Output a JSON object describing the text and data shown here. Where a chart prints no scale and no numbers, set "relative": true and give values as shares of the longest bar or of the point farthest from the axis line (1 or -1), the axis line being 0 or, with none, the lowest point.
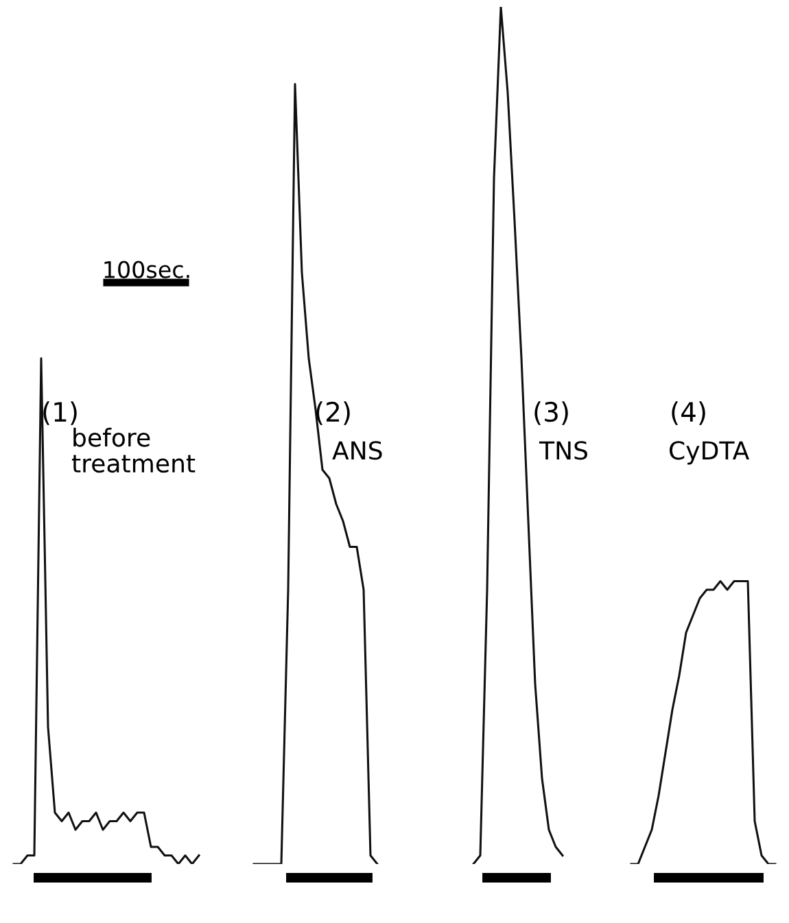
{
  "chart_data": {
    "type": "line",
    "relative": true,
    "legend": false,
    "grid": false,
    "categories": [
      null,
      null,
      null,
      null,
      null,
      null,
      null,
      null,
      null,
      null,
      null,
      null,
      null,
      null,
      null,
      null,
      null,
      null,
      null,
      null,
      null,
      null,
      null,
      null,
      null,
      null,
      null,
      null,
      null,
      null,
      null,
      null,
      null,
      null,
      null,
      null,
      null,
      null,
      null,
      null,
      null,
      null,
      null,
      null,
      null,
      null,
      null,
      null,
      null,
      null,
      null,
      null,
      null,
      null,
      null,
      null,
      null,
      null,
      null,
      null,
      null,
      null,
      null,
      null,
      null,
      null,
      null,
      null,
      null,
      null,
      null,
      null,
      null,
      null,
      null,
      null,
      null,
      null,
      null,
      null,
      null,
      null,
      null,
      null,
      null,
      null,
      null,
      null,
      null,
      null,
      null,
      null,
      null,
      null,
      null,
      null,
      null,
      null,
      null,
      null,
      null,
      null,
      null,
      null,
      null,
      null,
      null,
      null,
      null,
      null,
      null,
      null,
      null,
      null
    ],
    "series": [
      {
        "color": "#111111",
        "values": [
          null,
          0,
          0,
          0.01,
          0.01,
          0.59,
          0.16,
          0.06,
          0.05,
          0.06,
          0.04,
          0.05,
          0.05,
          0.06,
          0.04,
          0.05,
          0.05,
          0.06,
          0.05,
          0.06,
          0.06,
          0.02,
          0.02,
          0.01,
          0.01,
          0,
          0.01,
          0,
          0.01,
          null,
          null,
          null,
          null,
          null,
          null,
          null,
          null,
          null,
          null,
          null,
          null,
          null,
          null,
          null,
          null,
          null,
          null,
          null,
          null,
          null,
          null,
          null,
          null,
          null,
          null,
          null,
          null,
          null,
          null,
          null,
          null,
          null,
          null,
          null,
          null,
          null,
          null,
          null,
          null,
          null,
          null,
          null,
          null,
          null,
          null,
          null,
          null,
          null,
          null,
          null,
          null,
          null,
          null,
          null,
          null,
          null,
          null,
          null,
          null,
          null,
          null,
          null,
          null,
          null,
          null,
          null,
          null,
          null,
          null,
          null,
          null,
          null,
          null,
          null,
          null,
          null,
          null,
          null,
          null,
          null,
          null,
          null,
          null,
          null
        ]
      },
      {
        "color": "#111111",
        "values": [
          null,
          null,
          null,
          null,
          null,
          null,
          null,
          null,
          null,
          null,
          null,
          null,
          null,
          null,
          null,
          null,
          null,
          null,
          null,
          null,
          null,
          null,
          null,
          null,
          null,
          null,
          null,
          null,
          null,
          null,
          null,
          null,
          null,
          null,
          null,
          null,
          0,
          0,
          0,
          0,
          0,
          0.32,
          0.91,
          0.69,
          0.59,
          0.53,
          0.46,
          0.45,
          0.42,
          0.4,
          0.37,
          0.37,
          0.32,
          0.01,
          0,
          null,
          null,
          null,
          null,
          null,
          null,
          null,
          null,
          null,
          null,
          null,
          null,
          null,
          null,
          null,
          null,
          null,
          null,
          null,
          null,
          null,
          null,
          null,
          null,
          null,
          null,
          null,
          null,
          null,
          null,
          null,
          null,
          null,
          null,
          null,
          null,
          null,
          null,
          null,
          null,
          null,
          null,
          null,
          null,
          null,
          null,
          null,
          null,
          null,
          null,
          null,
          null,
          null,
          null,
          null,
          null,
          null,
          null,
          null
        ]
      },
      {
        "color": "#111111",
        "values": [
          null,
          null,
          null,
          null,
          null,
          null,
          null,
          null,
          null,
          null,
          null,
          null,
          null,
          null,
          null,
          null,
          null,
          null,
          null,
          null,
          null,
          null,
          null,
          null,
          null,
          null,
          null,
          null,
          null,
          null,
          null,
          null,
          null,
          null,
          null,
          null,
          null,
          null,
          null,
          null,
          null,
          null,
          null,
          null,
          null,
          null,
          null,
          null,
          null,
          null,
          null,
          null,
          null,
          null,
          null,
          null,
          null,
          null,
          null,
          null,
          null,
          null,
          null,
          null,
          null,
          null,
          null,
          null,
          0,
          0.01,
          0.32,
          0.8,
          1,
          0.9,
          0.75,
          0.59,
          0.4,
          0.21,
          0.1,
          0.04,
          0.02,
          0.01,
          null,
          null,
          null,
          null,
          null,
          null,
          null,
          null,
          null,
          null,
          null,
          null,
          null,
          null,
          null,
          null,
          null,
          null,
          null,
          null,
          null,
          null,
          null,
          null,
          null,
          null,
          null,
          null,
          null,
          null,
          null,
          null
        ]
      },
      {
        "color": "#111111",
        "values": [
          null,
          null,
          null,
          null,
          null,
          null,
          null,
          null,
          null,
          null,
          null,
          null,
          null,
          null,
          null,
          null,
          null,
          null,
          null,
          null,
          null,
          null,
          null,
          null,
          null,
          null,
          null,
          null,
          null,
          null,
          null,
          null,
          null,
          null,
          null,
          null,
          null,
          null,
          null,
          null,
          null,
          null,
          null,
          null,
          null,
          null,
          null,
          null,
          null,
          null,
          null,
          null,
          null,
          null,
          null,
          null,
          null,
          null,
          null,
          null,
          null,
          null,
          null,
          null,
          null,
          null,
          null,
          null,
          null,
          null,
          null,
          null,
          null,
          null,
          null,
          null,
          null,
          null,
          null,
          null,
          null,
          null,
          null,
          null,
          null,
          null,
          null,
          null,
          null,
          null,
          null,
          0,
          0,
          0.02,
          0.04,
          0.08,
          0.13,
          0.18,
          0.22,
          0.27,
          0.29,
          0.31,
          0.32,
          0.32,
          0.33,
          0.32,
          0.33,
          0.33,
          0.33,
          0.05,
          0.01,
          0,
          0,
          null
        ]
      }
    ],
    "annotations": [
      "100sec.",
      "(1)",
      "before\ntreatment",
      "(2)",
      "ANS",
      "(3)",
      "TNS",
      "(4)",
      "CyDTA"
    ]
  }
}
